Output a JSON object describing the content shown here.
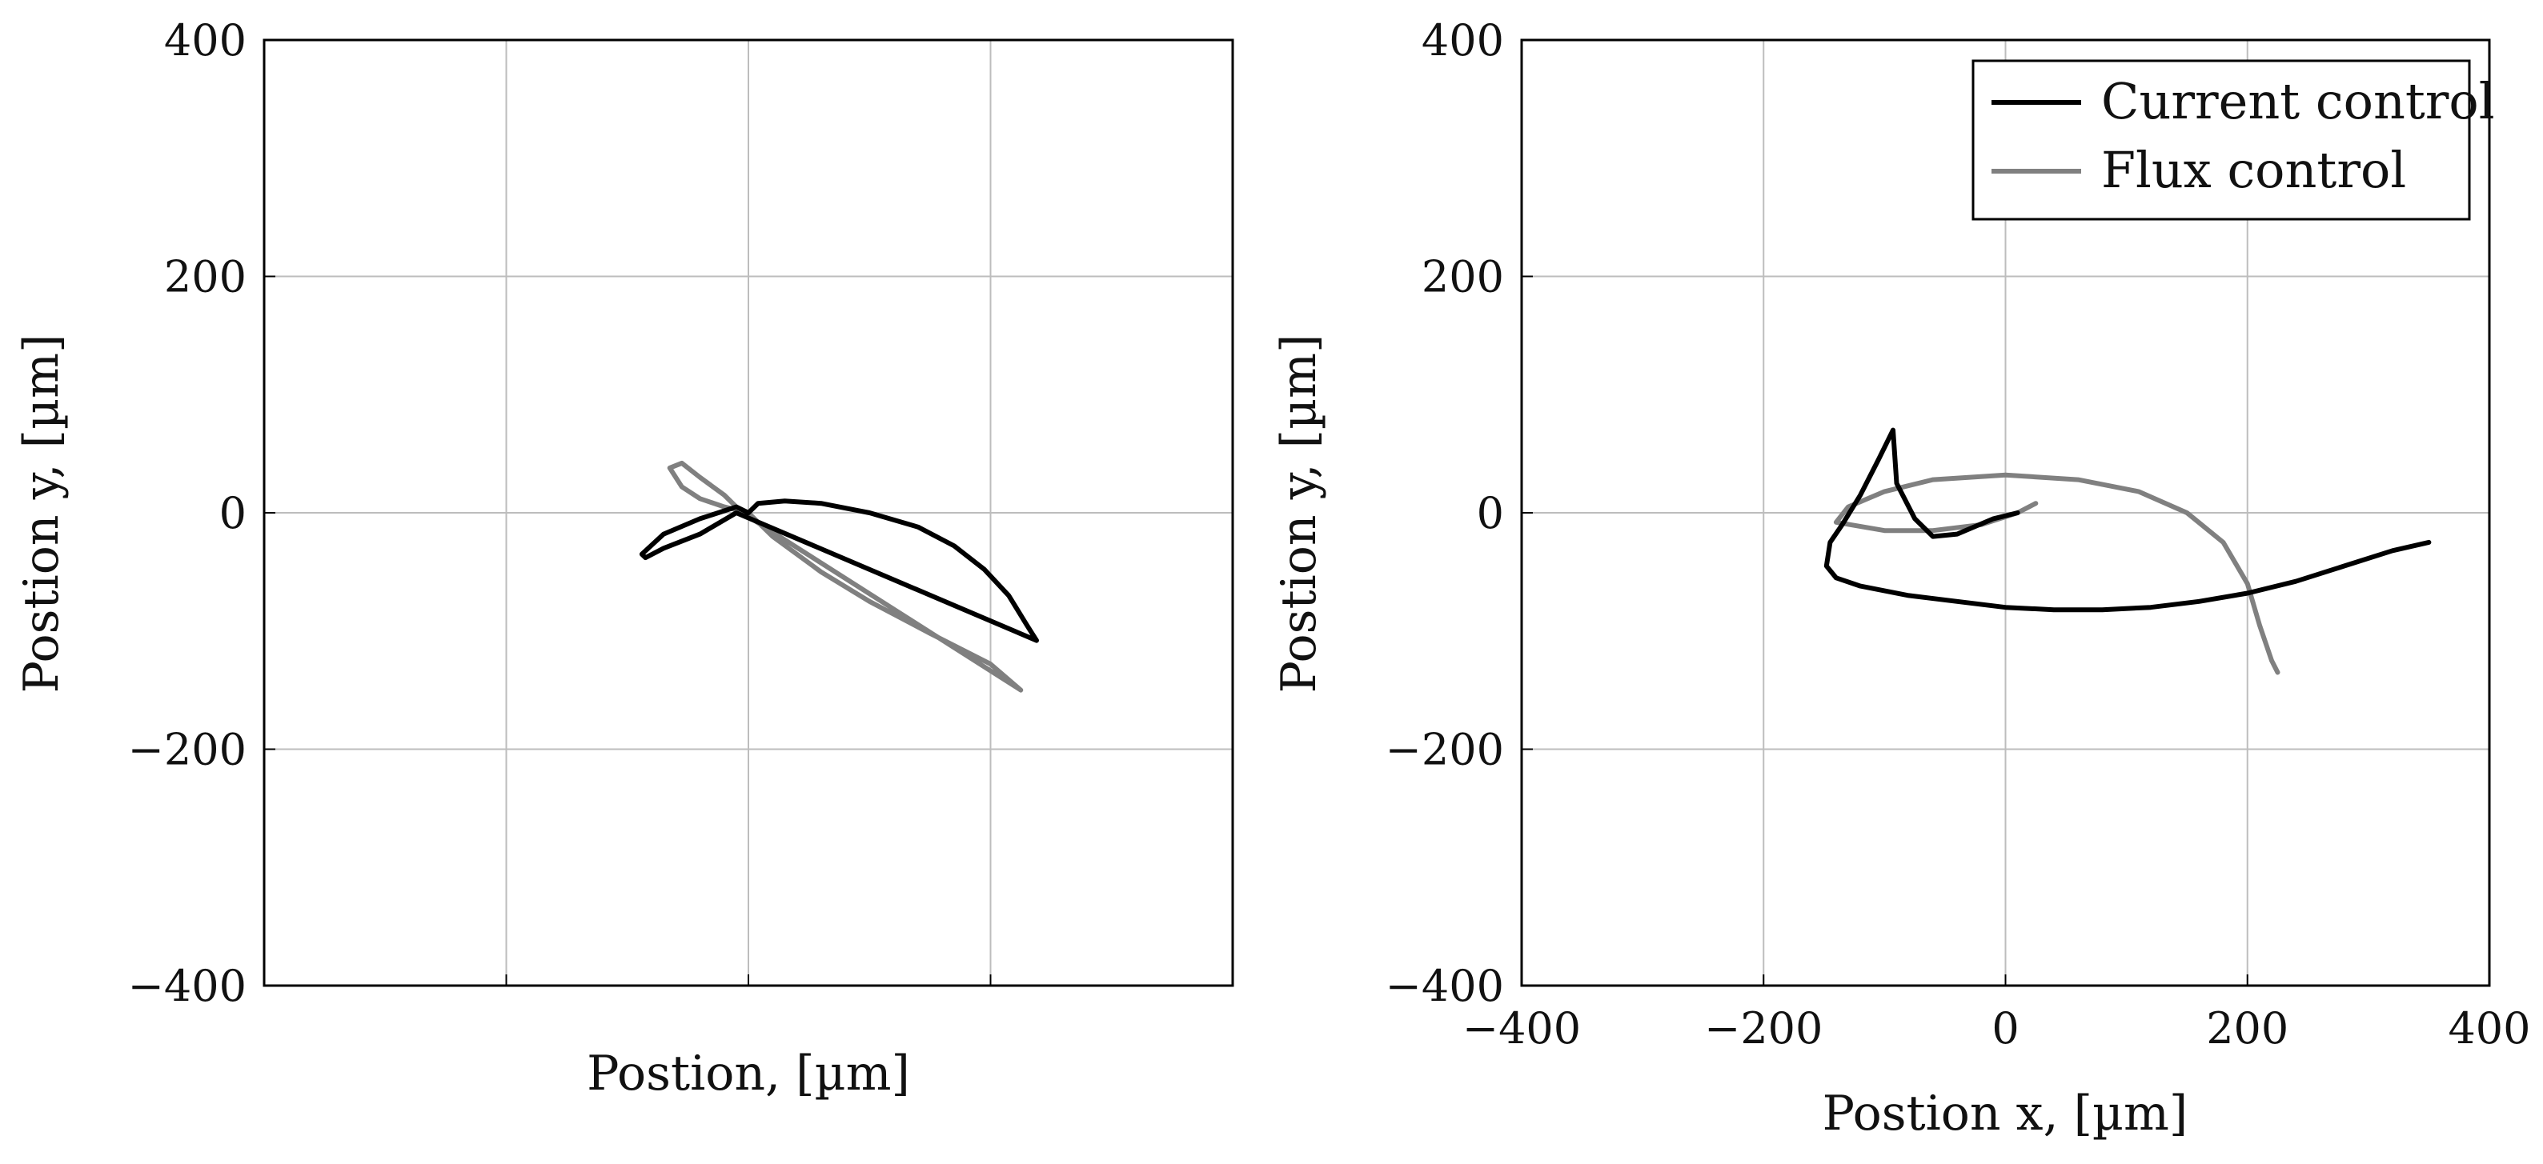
{
  "chart_data": [
    {
      "type": "line",
      "xlabel": "Postion, [µm]",
      "ylabel": "Postion y, [µm]",
      "xlim": [
        -400,
        400
      ],
      "ylim": [
        -400,
        400
      ],
      "xticks": [
        -200,
        0,
        200
      ],
      "yticks": [
        -400,
        -200,
        0,
        200,
        400
      ],
      "ytick_labels": [
        "−400",
        "−200",
        "0",
        "200",
        "400"
      ],
      "xtick_labels_shown": false,
      "grid": true,
      "series": [
        {
          "name": "Current control",
          "color": "#000000",
          "x": [
            0,
            8,
            30,
            60,
            100,
            140,
            170,
            195,
            215,
            230,
            238,
            -10,
            -40,
            -70,
            -85,
            -88,
            -70,
            -40,
            -10,
            0
          ],
          "y": [
            0,
            8,
            10,
            8,
            0,
            -12,
            -28,
            -48,
            -70,
            -95,
            -108,
            0,
            -18,
            -30,
            -38,
            -35,
            -18,
            -5,
            5,
            0
          ]
        },
        {
          "name": "Flux control",
          "color": "#808080",
          "x": [
            0,
            20,
            60,
            100,
            150,
            200,
            225,
            -5,
            -20,
            -40,
            -55,
            -65,
            -55,
            -40,
            -20,
            0
          ],
          "y": [
            0,
            -20,
            -50,
            -75,
            -102,
            -128,
            -150,
            0,
            15,
            30,
            42,
            38,
            22,
            12,
            5,
            0
          ]
        }
      ]
    },
    {
      "type": "line",
      "xlabel": "Postion x, [µm]",
      "ylabel": "Postion y, [µm]",
      "xlim": [
        -400,
        400
      ],
      "ylim": [
        -400,
        400
      ],
      "xticks": [
        -400,
        -200,
        0,
        200,
        400
      ],
      "xtick_labels": [
        "−400",
        "−200",
        "0",
        "200",
        "400"
      ],
      "yticks": [
        -400,
        -200,
        0,
        200,
        400
      ],
      "ytick_labels": [
        "−400",
        "−200",
        "0",
        "200",
        "400"
      ],
      "grid": true,
      "legend": {
        "position": "top-right",
        "entries": [
          "Current control",
          "Flux control"
        ]
      },
      "series": [
        {
          "name": "Current control",
          "color": "#000000",
          "x": [
            10,
            -10,
            -40,
            -60,
            -75,
            -90,
            -93,
            -105,
            -120,
            -135,
            -145,
            -148,
            -140,
            -120,
            -80,
            -40,
            0,
            40,
            80,
            120,
            160,
            200,
            240,
            280,
            320,
            350
          ],
          "y": [
            0,
            -5,
            -18,
            -20,
            -5,
            25,
            70,
            45,
            15,
            -10,
            -25,
            -45,
            -55,
            -62,
            -70,
            -75,
            -80,
            -82,
            -82,
            -80,
            -75,
            -68,
            -58,
            -45,
            -32,
            -25
          ]
        },
        {
          "name": "Flux control",
          "color": "#808080",
          "x": [
            25,
            10,
            -20,
            -60,
            -100,
            -140,
            -130,
            -100,
            -60,
            0,
            60,
            110,
            150,
            180,
            200,
            210,
            220,
            225
          ],
          "y": [
            8,
            0,
            -10,
            -15,
            -15,
            -8,
            5,
            18,
            28,
            32,
            28,
            18,
            0,
            -25,
            -60,
            -95,
            -125,
            -135
          ]
        }
      ]
    }
  ]
}
